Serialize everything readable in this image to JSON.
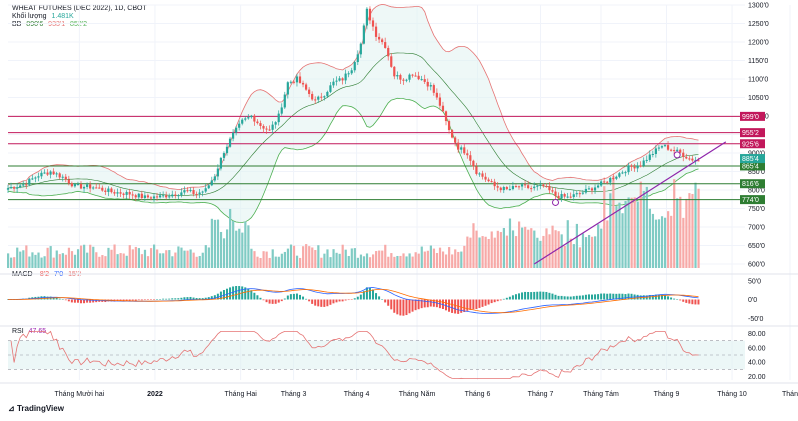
{
  "header": {
    "title": "WHEAT FUTURES (DEC 2022), 1D, CBOT",
    "volume_label": "Khối lượng",
    "volume_value": "1.481K",
    "bb_label": "BB",
    "bb_values": [
      "890'6",
      "933'1",
      "852'2"
    ]
  },
  "macd": {
    "label": "MACD",
    "values": [
      "-8'2",
      "7'0",
      "15'2"
    ]
  },
  "rsi": {
    "label": "RSI",
    "value": "47.65"
  },
  "logo": "TradingView",
  "colors": {
    "up": "#26a69a",
    "down": "#ef5350",
    "bb_upper": "#e57373",
    "bb_lower": "#4caf50",
    "bb_mid": "#2e7d32",
    "resistance": "#c2185b",
    "support": "#2e7d32",
    "trend": "#8e24aa"
  },
  "chart_data": [
    {
      "type": "candlestick",
      "title": "WHEAT FUTURES (DEC 2022), 1D, CBOT",
      "x_labels": [
        "Tháng Mười hai",
        "2022",
        "Tháng Hai",
        "Tháng 3",
        "Tháng 4",
        "Tháng Năm",
        "Tháng 6",
        "Tháng 7",
        "Tháng Tám",
        "Tháng 9",
        "Tháng 10",
        "Thán"
      ],
      "y_ticks": [
        "1300'0",
        "1250'0",
        "1200'0",
        "1150'0",
        "1100'0",
        "1050'0",
        "1000'0",
        "950'0",
        "900'0",
        "850'0",
        "800'0",
        "750'0",
        "700'0",
        "650'0",
        "600'0"
      ],
      "ylim": [
        600,
        1300
      ],
      "price_path": [
        [
          0,
          805
        ],
        [
          5,
          815
        ],
        [
          10,
          840
        ],
        [
          14,
          850
        ],
        [
          18,
          835
        ],
        [
          22,
          810
        ],
        [
          28,
          808
        ],
        [
          34,
          795
        ],
        [
          40,
          790
        ],
        [
          45,
          780
        ],
        [
          50,
          782
        ],
        [
          55,
          790
        ],
        [
          58,
          797
        ],
        [
          62,
          790
        ],
        [
          65,
          800
        ],
        [
          68,
          840
        ],
        [
          71,
          905
        ],
        [
          74,
          950
        ],
        [
          77,
          985
        ],
        [
          80,
          1000
        ],
        [
          83,
          975
        ],
        [
          86,
          960
        ],
        [
          89,
          1000
        ],
        [
          92,
          1090
        ],
        [
          95,
          1100
        ],
        [
          98,
          1070
        ],
        [
          101,
          1040
        ],
        [
          104,
          1060
        ],
        [
          107,
          1090
        ],
        [
          110,
          1100
        ],
        [
          113,
          1130
        ],
        [
          116,
          1195
        ],
        [
          118,
          1285
        ],
        [
          121,
          1220
        ],
        [
          124,
          1190
        ],
        [
          127,
          1110
        ],
        [
          130,
          1100
        ],
        [
          133,
          1115
        ],
        [
          136,
          1100
        ],
        [
          139,
          1080
        ],
        [
          142,
          1030
        ],
        [
          145,
          960
        ],
        [
          148,
          915
        ],
        [
          151,
          900
        ],
        [
          154,
          850
        ],
        [
          157,
          830
        ],
        [
          160,
          810
        ],
        [
          164,
          800
        ],
        [
          168,
          810
        ],
        [
          172,
          805
        ],
        [
          176,
          810
        ],
        [
          180,
          785
        ],
        [
          184,
          780
        ],
        [
          188,
          790
        ],
        [
          192,
          805
        ],
        [
          196,
          820
        ],
        [
          200,
          840
        ],
        [
          204,
          860
        ],
        [
          208,
          870
        ],
        [
          212,
          900
        ],
        [
          215,
          920
        ],
        [
          218,
          910
        ],
        [
          221,
          900
        ],
        [
          224,
          885
        ],
        [
          227,
          880
        ]
      ],
      "horizontal_levels": [
        {
          "label": "999'0",
          "value": 999,
          "role": "resistance"
        },
        {
          "label": "955'2",
          "value": 955,
          "role": "resistance"
        },
        {
          "label": "925'6",
          "value": 925,
          "role": "resistance"
        },
        {
          "label": "865'4",
          "value": 865,
          "role": "support"
        },
        {
          "label": "816'6",
          "value": 817,
          "role": "support"
        },
        {
          "label": "774'0",
          "value": 774,
          "role": "support"
        }
      ],
      "current_price_tag": {
        "label": "885'4",
        "value": 885
      },
      "trendline": {
        "from": [
          150,
          600
        ],
        "to": [
          236,
          930
        ]
      },
      "bollinger": {
        "upper": "890'6",
        "middle": "933'1",
        "lower": "852'2"
      }
    },
    {
      "type": "macd",
      "y_ticks": [
        "50'0",
        "0'0",
        "-50'0"
      ],
      "ylim": [
        -60,
        60
      ],
      "values": {
        "macd": "-8'2",
        "signal": "7'0",
        "histogram": "15'2"
      }
    },
    {
      "type": "rsi",
      "y_ticks": [
        "80.00",
        "60.00",
        "40.00",
        "20.00"
      ],
      "ylim": [
        15,
        85
      ],
      "value": "47.65",
      "band": [
        30,
        70
      ]
    }
  ]
}
